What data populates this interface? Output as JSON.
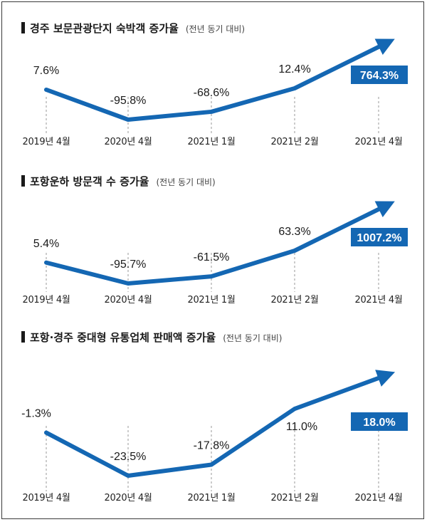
{
  "colors": {
    "line": "#1467b3",
    "highlight_box": "#1467b3",
    "text": "#1a1a1a"
  },
  "chart_data": [
    {
      "type": "line",
      "title": "경주 보문관광단지 숙박객 증가율",
      "subtitle": "(전년 동기 대비)",
      "categories": [
        "2019년 4월",
        "2020년 4월",
        "2021년 1월",
        "2021년 2월",
        "2021년 4월"
      ],
      "values": [
        7.6,
        -95.8,
        -68.6,
        12.4,
        764.3
      ],
      "labels": [
        "7.6%",
        "-95.8%",
        "-68.6%",
        "12.4%",
        "764.3%"
      ],
      "highlight_index": 4
    },
    {
      "type": "line",
      "title": "포항운하 방문객 수 증가율",
      "subtitle": "(전년 동기 대비)",
      "categories": [
        "2019년 4월",
        "2020년 4월",
        "2021년 1월",
        "2021년 2월",
        "2021년 4월"
      ],
      "values": [
        5.4,
        -95.7,
        -61.5,
        63.3,
        1007.2
      ],
      "labels": [
        "5.4%",
        "-95.7%",
        "-61.5%",
        "63.3%",
        "1007.2%"
      ],
      "highlight_index": 4
    },
    {
      "type": "line",
      "title": "포항·경주 중대형 유통업체 판매액 증가율",
      "subtitle": "(전년 동기 대비)",
      "categories": [
        "2019년 4월",
        "2020년 4월",
        "2021년 1월",
        "2021년 2월",
        "2021년 4월"
      ],
      "values": [
        -1.3,
        -23.5,
        -17.8,
        11.0,
        18.0
      ],
      "labels": [
        "-1.3%",
        "-23.5%",
        "-17.8%",
        "11.0%",
        "18.0%"
      ],
      "highlight_index": 4
    }
  ]
}
